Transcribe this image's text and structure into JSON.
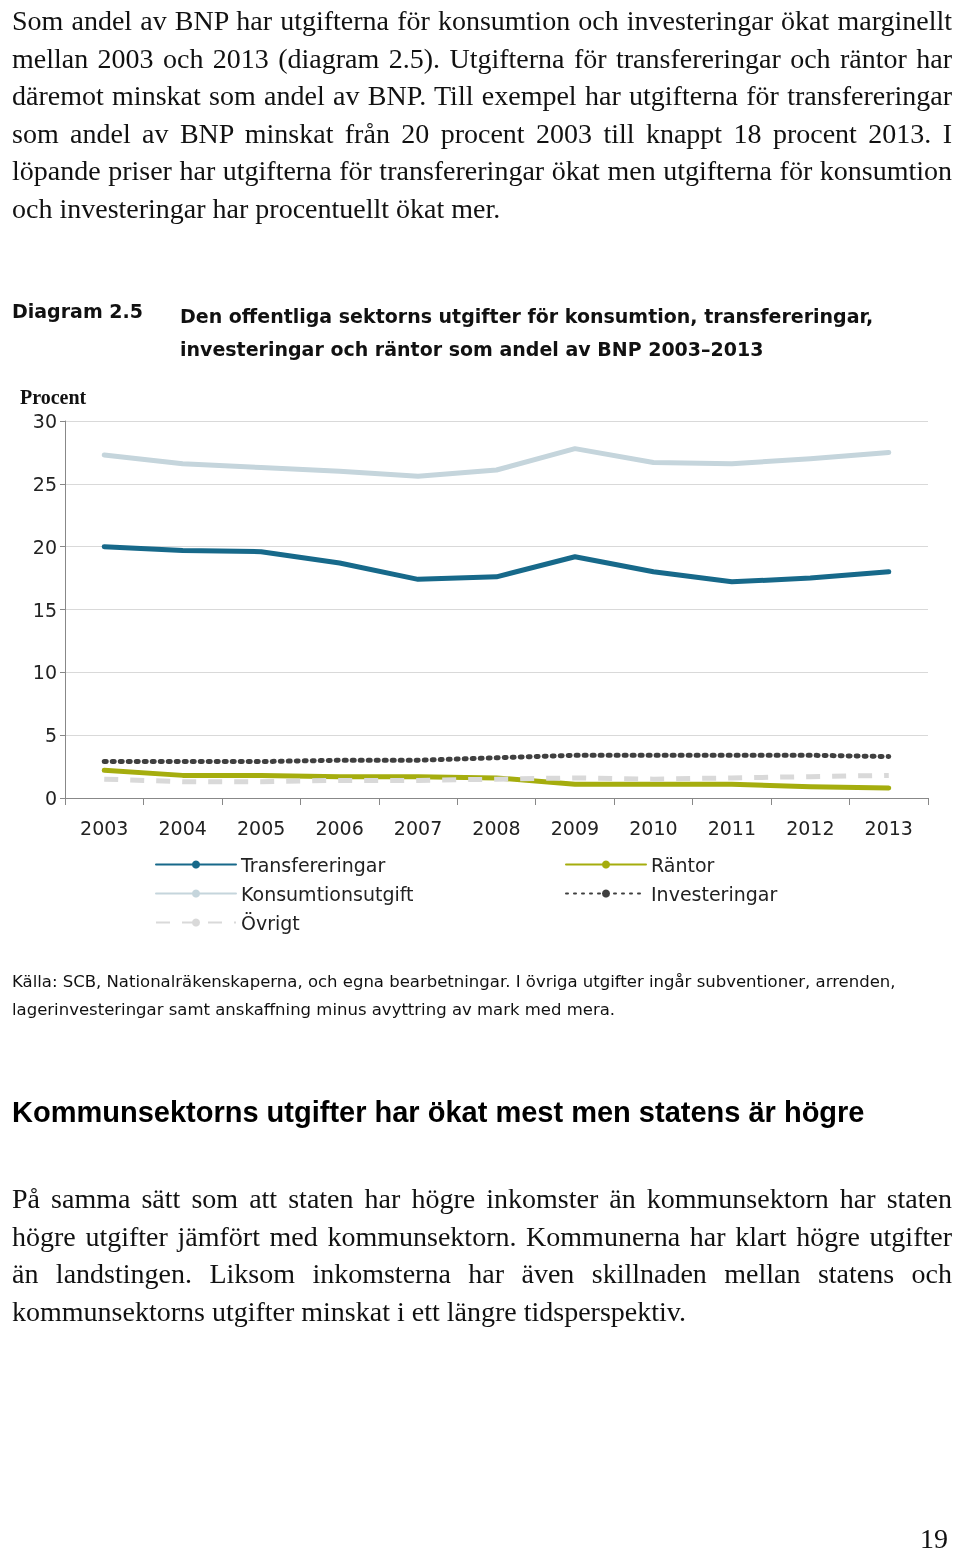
{
  "chart_data": {
    "type": "line",
    "title": "Den offentliga sektorns utgifter för konsumtion, transfereringar, investeringar och räntor som andel av BNP 2003–2013",
    "ylabel": "Procent",
    "categories": [
      "2003",
      "2004",
      "2005",
      "2006",
      "2007",
      "2008",
      "2009",
      "2010",
      "2011",
      "2012",
      "2013"
    ],
    "series": [
      {
        "name": "Transfereringar",
        "color": "#17698a",
        "line_style": "solid",
        "values": [
          20.0,
          19.7,
          19.6,
          18.7,
          17.4,
          17.6,
          19.2,
          18.0,
          17.2,
          17.5,
          18.0
        ]
      },
      {
        "name": "Räntor",
        "color": "#a5ad0e",
        "line_style": "solid",
        "values": [
          2.2,
          1.8,
          1.8,
          1.7,
          1.7,
          1.6,
          1.1,
          1.1,
          1.1,
          0.9,
          0.8
        ]
      },
      {
        "name": "Konsumtionsutgift",
        "color": "#c5d5dc",
        "line_style": "solid",
        "values": [
          27.3,
          26.6,
          26.3,
          26.0,
          25.6,
          26.1,
          27.8,
          26.7,
          26.6,
          27.0,
          27.5
        ]
      },
      {
        "name": "Investeringar",
        "color": "#404040",
        "line_style": "dotted",
        "values": [
          2.9,
          2.9,
          2.9,
          3.0,
          3.0,
          3.2,
          3.4,
          3.4,
          3.4,
          3.4,
          3.3
        ]
      },
      {
        "name": "Övrigt",
        "color": "#d9d9d9",
        "line_style": "dashed",
        "values": [
          1.5,
          1.3,
          1.3,
          1.4,
          1.4,
          1.5,
          1.6,
          1.5,
          1.6,
          1.7,
          1.8
        ]
      }
    ],
    "ylim": [
      0,
      30
    ],
    "yticks": [
      0,
      5,
      10,
      15,
      20,
      25,
      30
    ],
    "grid": "y",
    "legend": "bottom",
    "marker": "none",
    "annotations": [
      "Som andel av BNP har utgifterna för konsumtion och investeringar ökat marginellt mellan 2003 och 2013 (diagram 2.5). Utgifterna för transfereringar och räntor har däremot minskat som andel av BNP. Till exempel har utgifterna för transfereringar som andel av BNP minskat från 20 procent 2003 till knappt 18 procent 2013. I löpande priser har utgifterna för transfereringar ökat men utgifterna för konsumtion och investeringar har procentuellt ökat mer.",
      "Diagram 2.5",
      "Källa: SCB, Nationalräkenskaperna, och egna bearbetningar. I övriga utgifter ingår subventioner, arrenden, lagerinvesteringar samt anskaffning minus avyttring av mark med mera.",
      "Kommunsektorns utgifter har ökat mest men statens är högre",
      "På samma sätt som att staten har högre inkomster än kommunsektorn har staten högre utgifter jämfört med kommunsektorn. Kommunerna har klart högre utgifter än landstingen. Liksom inkomsterna har även skillnaden mellan statens och kommunsektorns utgifter minskat i ett längre tidsperspektiv.",
      "19"
    ]
  }
}
